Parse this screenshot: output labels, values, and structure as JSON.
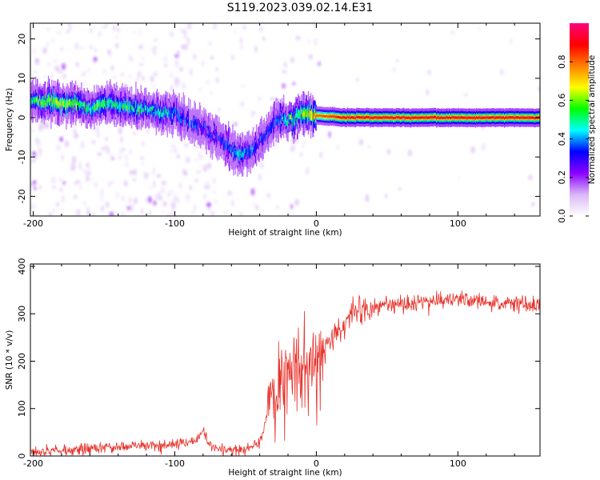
{
  "figure_title": "S119.2023.039.02.14.E31",
  "chart_data": [
    {
      "type": "heatmap",
      "title": "",
      "xlabel": "Height of straight line (km)",
      "ylabel": "Frequency (Hz)",
      "xlim": [
        -202,
        158
      ],
      "ylim": [
        -25,
        24
      ],
      "xticks": [
        -200,
        -100,
        0,
        100
      ],
      "yticks": [
        -20,
        -10,
        0,
        10,
        20
      ],
      "colorbar": {
        "label": "Normalized spectral amplitude",
        "range": [
          0,
          1
        ],
        "ticks": [
          "0.0",
          "0.2",
          "0.4",
          "0.6",
          "0.8"
        ],
        "tick_values": [
          0.0,
          0.2,
          0.4,
          0.6,
          0.8
        ],
        "colors": [
          "#ffffff",
          "#d9b8f5",
          "#8b00ff",
          "#0000ff",
          "#00ffff",
          "#00ff00",
          "#ffff00",
          "#ff8000",
          "#ff0000",
          "#ff007f"
        ]
      },
      "ridge": {
        "height_km": [
          -202,
          -190,
          -180,
          -170,
          -160,
          -150,
          -140,
          -130,
          -120,
          -110,
          -100,
          -90,
          -80,
          -70,
          -60,
          -55,
          -50,
          -45,
          -40,
          -35,
          -30,
          -25,
          -20,
          -15,
          -10,
          -5,
          0,
          20,
          50,
          80,
          100,
          130,
          158
        ],
        "frequency_hz": [
          4.5,
          4,
          3.5,
          3.5,
          2,
          3.5,
          3,
          2.5,
          2,
          1.5,
          1,
          -1,
          -3,
          -5,
          -8,
          -9.5,
          -9,
          -8,
          -6,
          -4,
          -1,
          0,
          -1,
          0,
          1,
          1,
          0.5,
          0,
          0,
          0,
          0,
          0,
          0
        ],
        "peak_amplitude": [
          0.5,
          0.6,
          0.65,
          0.6,
          0.5,
          0.55,
          0.5,
          0.5,
          0.45,
          0.45,
          0.4,
          0.35,
          0.3,
          0.3,
          0.4,
          0.45,
          0.4,
          0.35,
          0.3,
          0.35,
          0.35,
          0.4,
          0.5,
          0.55,
          0.6,
          0.7,
          0.8,
          0.9,
          0.9,
          0.9,
          0.9,
          0.9,
          0.9
        ]
      }
    },
    {
      "type": "line",
      "title": "",
      "xlabel": "Height of straight line (km)",
      "ylabel": "SNR (10 * v/v)",
      "xlim": [
        -202,
        158
      ],
      "ylim": [
        0,
        405
      ],
      "xticks": [
        -200,
        -100,
        0,
        100
      ],
      "yticks": [
        0,
        100,
        200,
        300,
        400
      ],
      "line_color": "#e8312a",
      "series": [
        {
          "x": [
            -202,
            -180,
            -160,
            -140,
            -120,
            -110,
            -100,
            -90,
            -85,
            -80,
            -75,
            -70,
            -60,
            -50,
            -40,
            -35,
            -30,
            -25,
            -20,
            -15,
            -10,
            -5,
            0,
            5,
            10,
            15,
            20,
            25,
            30,
            40,
            50,
            60,
            70,
            80,
            90,
            100,
            105,
            110,
            120,
            130,
            140,
            150,
            158
          ],
          "y": [
            10,
            12,
            15,
            18,
            25,
            20,
            25,
            30,
            35,
            50,
            20,
            15,
            12,
            15,
            30,
            80,
            120,
            150,
            170,
            180,
            200,
            190,
            200,
            220,
            240,
            260,
            280,
            295,
            305,
            315,
            320,
            322,
            325,
            325,
            328,
            330,
            330,
            325,
            325,
            322,
            322,
            320,
            320
          ]
        }
      ]
    }
  ]
}
